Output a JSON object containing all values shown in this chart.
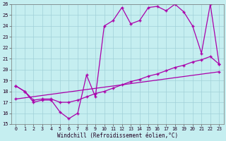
{
  "xlabel": "Windchill (Refroidissement éolien,°C)",
  "background_color": "#c5eef0",
  "grid_color": "#a0d0d8",
  "line_color": "#aa00aa",
  "xlim": [
    -0.5,
    23.5
  ],
  "ylim": [
    15,
    26
  ],
  "xticks": [
    0,
    1,
    2,
    3,
    4,
    5,
    6,
    7,
    8,
    9,
    10,
    11,
    12,
    13,
    14,
    15,
    16,
    17,
    18,
    19,
    20,
    21,
    22,
    23
  ],
  "yticks": [
    15,
    16,
    17,
    18,
    19,
    20,
    21,
    22,
    23,
    24,
    25,
    26
  ],
  "zigzag_x": [
    0,
    1,
    2,
    3,
    4,
    5,
    6,
    7,
    8,
    9,
    10,
    11,
    12,
    13,
    14,
    15,
    16,
    17,
    18,
    19,
    20,
    21,
    22,
    23
  ],
  "zigzag_y": [
    18.5,
    18.0,
    17.0,
    17.2,
    17.2,
    16.1,
    15.5,
    16.0,
    19.5,
    17.5,
    24.0,
    24.5,
    25.7,
    24.2,
    24.5,
    25.7,
    25.8,
    25.4,
    26.0,
    25.3,
    24.0,
    21.5,
    26.0,
    20.5
  ],
  "line2_x": [
    0,
    1,
    2,
    3,
    4,
    5,
    6,
    7,
    8,
    9,
    10,
    11,
    12,
    13,
    14,
    15,
    16,
    17,
    18,
    19,
    20,
    21,
    22,
    23
  ],
  "line2_y": [
    18.5,
    18.0,
    17.2,
    17.3,
    17.3,
    17.0,
    17.0,
    17.2,
    17.5,
    17.8,
    18.0,
    18.3,
    18.6,
    18.9,
    19.1,
    19.4,
    19.6,
    19.9,
    20.2,
    20.4,
    20.7,
    20.9,
    21.2,
    20.5
  ],
  "line3_x": [
    0,
    23
  ],
  "line3_y": [
    17.3,
    19.8
  ]
}
